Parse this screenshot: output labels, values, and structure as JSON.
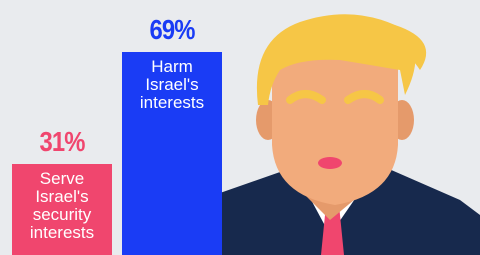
{
  "chart_data": {
    "type": "bar",
    "categories": [
      "Serve Israel's security interests",
      "Harm Israel's interests"
    ],
    "values": [
      31,
      69
    ],
    "value_labels": [
      "31%",
      "69%"
    ],
    "colors": [
      "#f0466e",
      "#1a3cf5"
    ]
  }
}
